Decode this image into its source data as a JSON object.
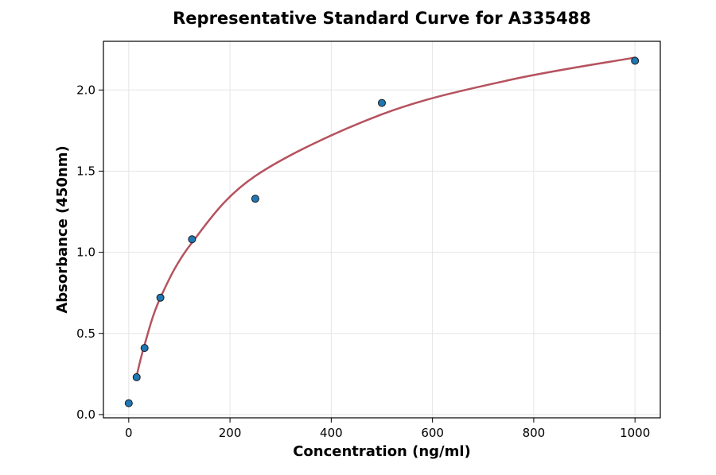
{
  "chart_data": {
    "type": "scatter",
    "title": "Representative Standard Curve for A335488",
    "xlabel": "Concentration (ng/ml)",
    "ylabel": "Absorbance (450nm)",
    "xlim": [
      -50,
      1050
    ],
    "ylim": [
      -0.02,
      2.3
    ],
    "grid": true,
    "x_ticks": [
      0,
      200,
      400,
      600,
      800,
      1000
    ],
    "y_ticks": [
      0.0,
      0.5,
      1.0,
      1.5,
      2.0
    ],
    "x_tick_labels": [
      "0",
      "200",
      "400",
      "600",
      "800",
      "1000"
    ],
    "y_tick_labels": [
      "0.0",
      "0.5",
      "1.0",
      "1.5",
      "2.0"
    ],
    "series": [
      {
        "type": "scatter",
        "color": "#1f77b4",
        "points": [
          {
            "x": 0,
            "y": 0.07
          },
          {
            "x": 15.6,
            "y": 0.23
          },
          {
            "x": 31.25,
            "y": 0.41
          },
          {
            "x": 62.5,
            "y": 0.72
          },
          {
            "x": 125,
            "y": 1.08
          },
          {
            "x": 250,
            "y": 1.33
          },
          {
            "x": 500,
            "y": 1.92
          },
          {
            "x": 1000,
            "y": 2.18
          }
        ]
      },
      {
        "type": "line",
        "color": "#b5535f",
        "x": [
          15,
          31.25,
          62.5,
          125,
          250,
          500,
          750,
          1000
        ],
        "y": [
          0.23,
          0.43,
          0.72,
          1.06,
          1.47,
          1.85,
          2.06,
          2.2
        ]
      }
    ]
  }
}
